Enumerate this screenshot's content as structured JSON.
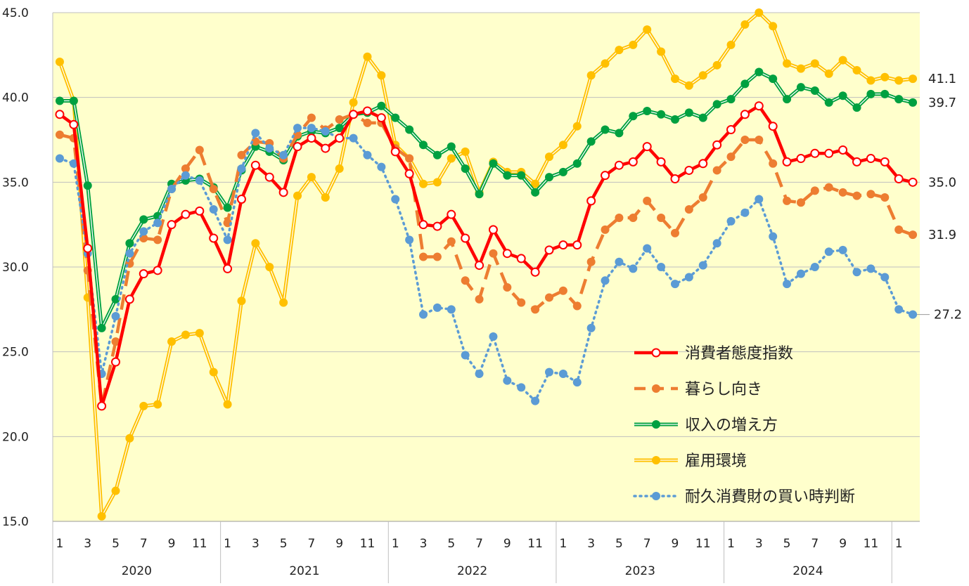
{
  "chart_data": {
    "type": "line",
    "title": "",
    "xlabel": "",
    "ylabel": "",
    "ylim": [
      15.0,
      45.0
    ],
    "yticks": [
      "15.0",
      "20.0",
      "25.0",
      "30.0",
      "35.0",
      "40.0",
      "45.0"
    ],
    "grid": true,
    "legend_position": "bottom-right",
    "plot_background": "#ffffcc",
    "month_ticks": [
      "1",
      "3",
      "5",
      "7",
      "9",
      "11",
      "1",
      "3",
      "5",
      "7",
      "9",
      "11",
      "1",
      "3",
      "5",
      "7",
      "9",
      "11",
      "1",
      "3",
      "5",
      "7",
      "9",
      "11",
      "1",
      "3",
      "5",
      "7",
      "9",
      "11",
      "1"
    ],
    "years": [
      "2020",
      "2021",
      "2022",
      "2023",
      "2024"
    ],
    "series": [
      {
        "name": "消費者態度指数",
        "color": "#ff0000",
        "style": "solid-hollow",
        "end_label": "35.0",
        "values": [
          39.0,
          38.4,
          31.1,
          21.8,
          24.4,
          28.1,
          29.6,
          29.8,
          32.5,
          33.1,
          33.3,
          31.7,
          29.9,
          34.0,
          36.0,
          35.3,
          34.4,
          37.1,
          37.6,
          37.0,
          37.6,
          39.0,
          39.2,
          38.8,
          36.8,
          35.5,
          32.5,
          32.4,
          33.1,
          31.7,
          30.1,
          32.2,
          30.8,
          30.5,
          29.7,
          31.0,
          31.3,
          31.3,
          33.9,
          35.4,
          36.0,
          36.2,
          37.1,
          36.2,
          35.2,
          35.7,
          36.1,
          37.2,
          38.1,
          39.0,
          39.5,
          38.3,
          36.2,
          36.4,
          36.7,
          36.7,
          36.9,
          36.2,
          36.4,
          36.2,
          35.2,
          35.0
        ]
      },
      {
        "name": "暮らし向き",
        "color": "#ed7d31",
        "style": "dashed",
        "end_label": "31.9",
        "values": [
          37.8,
          37.6,
          29.8,
          21.8,
          25.6,
          30.2,
          31.7,
          31.6,
          34.6,
          35.8,
          36.9,
          34.6,
          32.6,
          36.6,
          37.4,
          37.3,
          36.4,
          37.8,
          38.8,
          38.1,
          38.7,
          39.0,
          38.5,
          38.5,
          37.0,
          36.4,
          30.6,
          30.6,
          31.5,
          29.2,
          28.1,
          30.8,
          28.8,
          27.9,
          27.5,
          28.2,
          28.6,
          27.7,
          30.3,
          32.2,
          32.9,
          32.9,
          33.9,
          32.9,
          32.0,
          33.4,
          34.1,
          35.7,
          36.5,
          37.5,
          37.5,
          36.1,
          33.9,
          33.8,
          34.5,
          34.7,
          34.4,
          34.2,
          34.3,
          34.1,
          32.2,
          31.9
        ]
      },
      {
        "name": "収入の増え方",
        "color": "#00a040",
        "style": "double-solid",
        "end_label": "39.7",
        "values": [
          39.8,
          39.8,
          34.8,
          26.4,
          28.1,
          31.4,
          32.8,
          33.0,
          34.9,
          35.1,
          35.2,
          34.7,
          33.5,
          35.7,
          37.1,
          36.8,
          36.3,
          37.7,
          38.0,
          37.9,
          38.2,
          39.0,
          39.1,
          39.5,
          38.8,
          38.1,
          37.2,
          36.6,
          37.1,
          35.8,
          34.3,
          36.1,
          35.4,
          35.4,
          34.4,
          35.3,
          35.6,
          36.1,
          37.4,
          38.1,
          37.9,
          38.9,
          39.2,
          39.0,
          38.7,
          39.1,
          38.8,
          39.6,
          39.9,
          40.8,
          41.5,
          41.1,
          39.9,
          40.6,
          40.4,
          39.7,
          40.1,
          39.4,
          40.2,
          40.2,
          39.9,
          39.7
        ]
      },
      {
        "name": "雇用環境",
        "color": "#ffc000",
        "style": "double-solid",
        "end_label": "41.1",
        "values": [
          42.1,
          39.8,
          28.2,
          15.3,
          16.8,
          19.9,
          21.8,
          21.9,
          25.6,
          26.0,
          26.1,
          23.8,
          21.9,
          28.0,
          31.4,
          30.0,
          27.9,
          34.2,
          35.3,
          34.1,
          35.8,
          39.7,
          42.4,
          41.3,
          37.2,
          36.4,
          34.9,
          35.0,
          36.4,
          36.8,
          34.4,
          36.2,
          35.6,
          35.6,
          34.9,
          36.5,
          37.2,
          38.3,
          41.3,
          42.0,
          42.8,
          43.1,
          44.0,
          42.7,
          41.1,
          40.7,
          41.3,
          41.9,
          43.1,
          44.3,
          45.0,
          44.2,
          42.0,
          41.7,
          42.0,
          41.4,
          42.2,
          41.6,
          41.0,
          41.2,
          41.0,
          41.1
        ]
      },
      {
        "name": "耐久消費財の買い時判断",
        "color": "#5b9bd5",
        "style": "dotted",
        "end_label": "27.2",
        "values": [
          36.4,
          36.1,
          30.8,
          23.7,
          27.1,
          30.8,
          32.1,
          32.6,
          34.6,
          35.4,
          35.1,
          33.4,
          31.6,
          35.8,
          37.9,
          37.0,
          36.6,
          38.2,
          38.2,
          38.0,
          37.6,
          37.6,
          36.6,
          35.9,
          34.0,
          31.6,
          27.2,
          27.6,
          27.5,
          24.8,
          23.7,
          25.9,
          23.3,
          22.9,
          22.1,
          23.8,
          23.7,
          23.2,
          26.4,
          29.2,
          30.3,
          29.9,
          31.1,
          30.0,
          29.0,
          29.4,
          30.1,
          31.4,
          32.7,
          33.2,
          34.0,
          31.8,
          29.0,
          29.6,
          30.0,
          30.9,
          31.0,
          29.7,
          29.9,
          29.4,
          27.5,
          27.2
        ]
      }
    ]
  }
}
